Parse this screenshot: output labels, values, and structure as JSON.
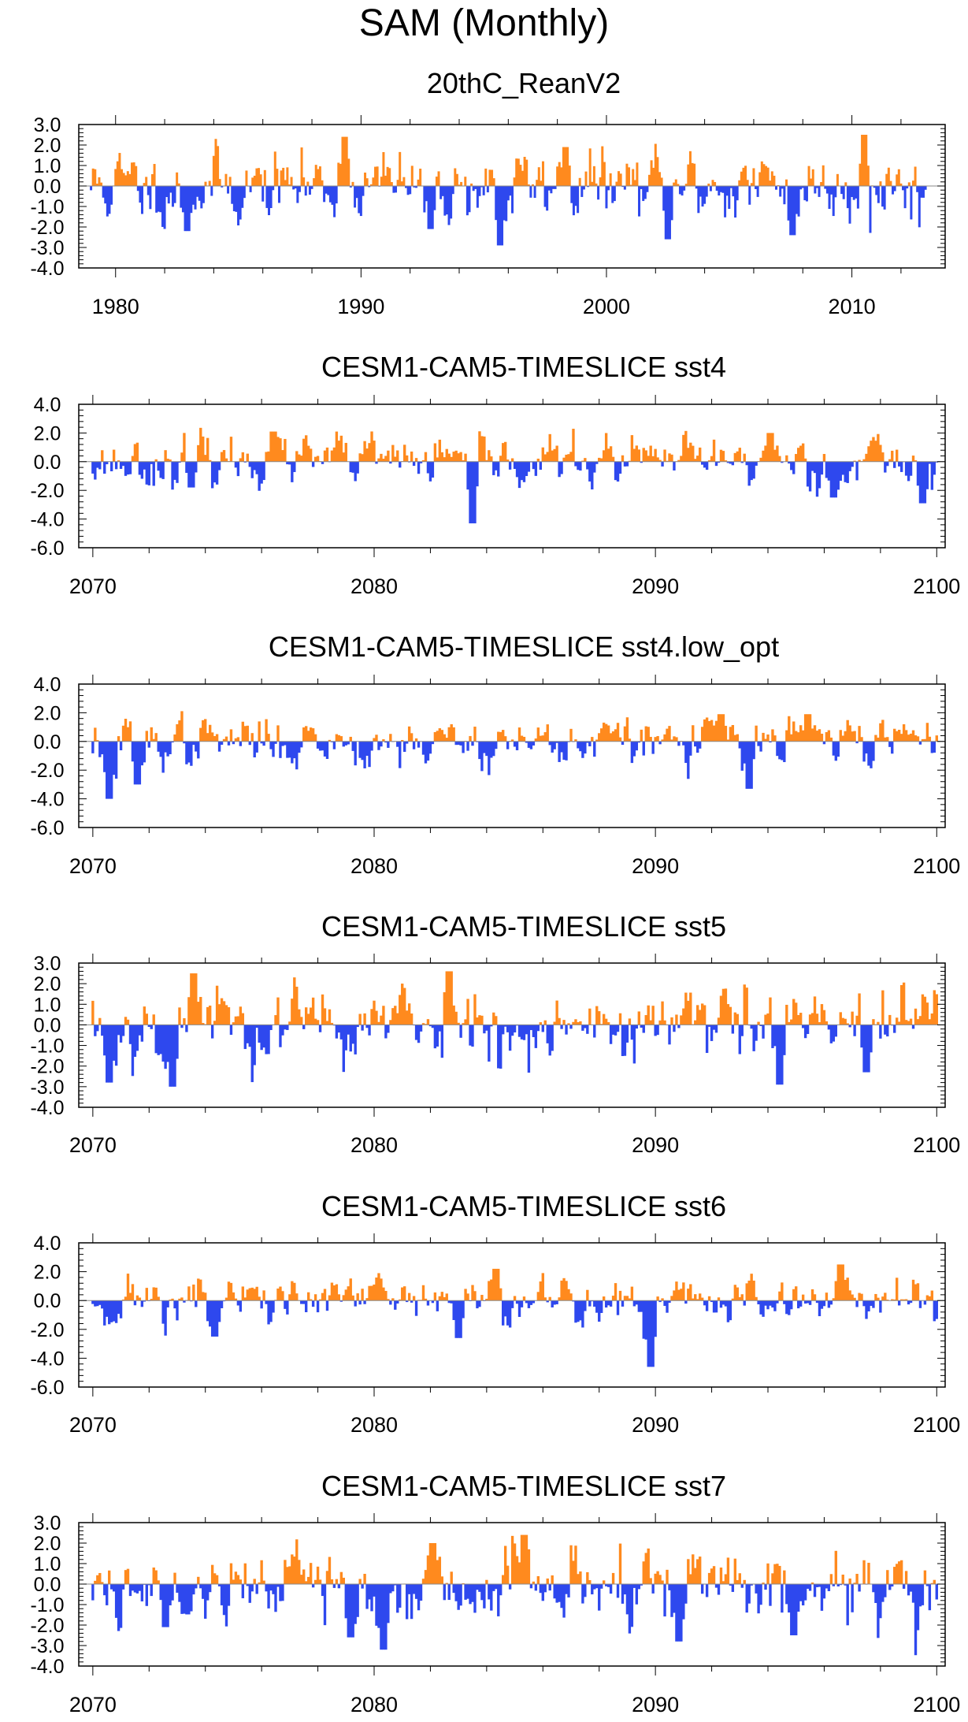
{
  "title": "SAM (Monthly)",
  "colors": {
    "positive": "#FF8A1E",
    "negative": "#2E48EE",
    "frame": "#000000"
  },
  "chart_data": [
    {
      "type": "area",
      "title": "20thC_ReanV2",
      "xlabel": "",
      "ylabel": "",
      "xlim": [
        1978.5,
        2013.8
      ],
      "xticks": [
        1980,
        1990,
        2000,
        2010
      ],
      "ylim": [
        -4.0,
        3.0
      ],
      "yticks": [
        3.0,
        2.0,
        1.0,
        0.0,
        -1.0,
        -2.0,
        -3.0,
        -4.0
      ],
      "ytick_labels": [
        "3.0",
        "2.0",
        "1.0",
        "0.0",
        "-1.0",
        "-2.0",
        "-3.0",
        "-4.0"
      ],
      "x_start": 1979.0,
      "x_end": 2013.0,
      "seed": 11,
      "amplitude": 1.0,
      "features": [
        [
          1989.3,
          2.4
        ],
        [
          1995.7,
          -2.9
        ],
        [
          2010.5,
          2.5
        ],
        [
          2002.5,
          -2.6
        ],
        [
          1982.9,
          -2.2
        ],
        [
          1992.8,
          -2.1
        ],
        [
          2007.6,
          -2.4
        ],
        [
          1998.3,
          1.9
        ]
      ]
    },
    {
      "type": "area",
      "title": "CESM1-CAM5-TIMESLICE sst4",
      "xlabel": "",
      "ylabel": "",
      "xlim": [
        2069.5,
        2100.3
      ],
      "xticks": [
        2070,
        2080,
        2090,
        2100
      ],
      "ylim": [
        -6.0,
        4.0
      ],
      "yticks": [
        4.0,
        2.0,
        0.0,
        -2.0,
        -4.0,
        -6.0
      ],
      "ytick_labels": [
        "4.0",
        "2.0",
        "0.0",
        "-2.0",
        "-4.0",
        "-6.0"
      ],
      "x_start": 2070.0,
      "x_end": 2100.0,
      "seed": 23,
      "amplitude": 1.0,
      "features": [
        [
          2083.5,
          -4.3
        ],
        [
          2076.4,
          2.1
        ],
        [
          2096.3,
          -2.5
        ],
        [
          2099.5,
          -2.9
        ],
        [
          2073.5,
          -1.8
        ],
        [
          2094.1,
          2.0
        ]
      ]
    },
    {
      "type": "area",
      "title": "CESM1-CAM5-TIMESLICE sst4.low_opt",
      "xlabel": "",
      "ylabel": "",
      "xlim": [
        2069.5,
        2100.3
      ],
      "xticks": [
        2070,
        2080,
        2090,
        2100
      ],
      "ylim": [
        -6.0,
        4.0
      ],
      "yticks": [
        4.0,
        2.0,
        0.0,
        -2.0,
        -4.0,
        -6.0
      ],
      "ytick_labels": [
        "4.0",
        "2.0",
        "0.0",
        "-2.0",
        "-4.0",
        "-6.0"
      ],
      "x_start": 2070.0,
      "x_end": 2100.0,
      "seed": 37,
      "amplitude": 1.0,
      "features": [
        [
          2070.6,
          -4.0
        ],
        [
          2093.3,
          -3.3
        ],
        [
          2071.6,
          -3.0
        ],
        [
          2095.4,
          1.9
        ],
        [
          2092.3,
          1.9
        ]
      ]
    },
    {
      "type": "area",
      "title": "CESM1-CAM5-TIMESLICE sst5",
      "xlabel": "",
      "ylabel": "",
      "xlim": [
        2069.5,
        2100.3
      ],
      "xticks": [
        2070,
        2080,
        2090,
        2100
      ],
      "ylim": [
        -4.0,
        3.0
      ],
      "yticks": [
        3.0,
        2.0,
        1.0,
        0.0,
        -1.0,
        -2.0,
        -3.0,
        -4.0
      ],
      "ytick_labels": [
        "3.0",
        "2.0",
        "1.0",
        "0.0",
        "-1.0",
        "-2.0",
        "-3.0",
        "-4.0"
      ],
      "x_start": 2070.0,
      "x_end": 2100.0,
      "seed": 53,
      "amplitude": 1.1,
      "features": [
        [
          2072.8,
          -3.0
        ],
        [
          2070.6,
          -2.8
        ],
        [
          2082.7,
          2.6
        ],
        [
          2073.6,
          2.5
        ],
        [
          2094.4,
          -2.9
        ],
        [
          2097.5,
          -2.3
        ]
      ]
    },
    {
      "type": "area",
      "title": "CESM1-CAM5-TIMESLICE sst6",
      "xlabel": "",
      "ylabel": "",
      "xlim": [
        2069.5,
        2100.3
      ],
      "xticks": [
        2070,
        2080,
        2090,
        2100
      ],
      "ylim": [
        -6.0,
        4.0
      ],
      "yticks": [
        4.0,
        2.0,
        0.0,
        -2.0,
        -4.0,
        -6.0
      ],
      "ytick_labels": [
        "4.0",
        "2.0",
        "0.0",
        "-2.0",
        "-4.0",
        "-6.0"
      ],
      "x_start": 2070.0,
      "x_end": 2100.0,
      "seed": 71,
      "amplitude": 1.0,
      "features": [
        [
          2089.8,
          -4.6
        ],
        [
          2096.6,
          2.5
        ],
        [
          2083.0,
          -2.6
        ],
        [
          2084.3,
          2.2
        ],
        [
          2074.3,
          -2.5
        ]
      ]
    },
    {
      "type": "area",
      "title": "CESM1-CAM5-TIMESLICE sst7",
      "xlabel": "",
      "ylabel": "",
      "xlim": [
        2069.5,
        2100.3
      ],
      "xticks": [
        2070,
        2080,
        2090,
        2100
      ],
      "ylim": [
        -4.0,
        3.0
      ],
      "yticks": [
        3.0,
        2.0,
        1.0,
        0.0,
        -1.0,
        -2.0,
        -3.0,
        -4.0
      ],
      "ytick_labels": [
        "3.0",
        "2.0",
        "1.0",
        "0.0",
        "-1.0",
        "-2.0",
        "-3.0",
        "-4.0"
      ],
      "x_start": 2070.0,
      "x_end": 2100.0,
      "seed": 89,
      "amplitude": 1.1,
      "features": [
        [
          2080.3,
          -3.2
        ],
        [
          2085.3,
          2.4
        ],
        [
          2090.8,
          -2.8
        ],
        [
          2094.9,
          -2.5
        ],
        [
          2072.6,
          -2.1
        ],
        [
          2079.2,
          -2.6
        ],
        [
          2082.1,
          2.0
        ]
      ]
    }
  ]
}
